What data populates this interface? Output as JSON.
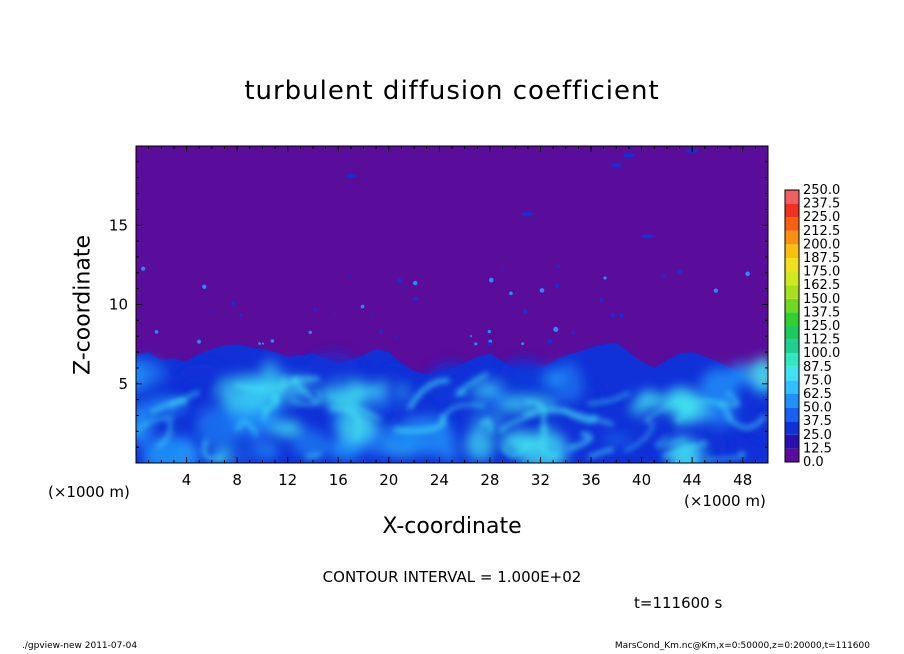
{
  "chart_data": {
    "type": "heatmap",
    "title": "turbulent diffusion coefficient",
    "xlabel": "X-coordinate",
    "ylabel": "Z-coordinate",
    "x_unit_label": "(×1000 m)",
    "y_unit_label": "(×1000 m)",
    "xlim": [
      0,
      50
    ],
    "ylim": [
      0,
      20
    ],
    "x_ticks": [
      4,
      8,
      12,
      16,
      20,
      24,
      28,
      32,
      36,
      40,
      44,
      48
    ],
    "y_ticks": [
      5,
      10,
      15
    ],
    "colorbar": {
      "levels": [
        "0.0",
        "12.5",
        "25.0",
        "37.5",
        "50.0",
        "62.5",
        "75.0",
        "87.5",
        "100.0",
        "112.5",
        "125.0",
        "137.5",
        "150.0",
        "162.5",
        "175.0",
        "187.5",
        "200.0",
        "212.5",
        "225.0",
        "237.5",
        "250.0"
      ],
      "colors": [
        "#5a0c9a",
        "#2a10b0",
        "#1030d8",
        "#1860f0",
        "#2090f8",
        "#30c0ff",
        "#40e0f0",
        "#30e8c0",
        "#20d090",
        "#20c860",
        "#30d030",
        "#70d820",
        "#a8e020",
        "#d0e820",
        "#f0e020",
        "#f8c010",
        "#f89010",
        "#f86010",
        "#f03020",
        "#f06060"
      ]
    },
    "field_description": "Background value ~0 (purple) above ~7 km; turbulent mixed layer 0–7 km with values up to ~75 (cyan); scattered small eddies 8–12 km",
    "contour_interval": "CONTOUR INTERVAL = 1.000E+02",
    "time_label": "t=111600 s"
  },
  "footer": {
    "left": "./gpview-new   2011-07-04",
    "right": "MarsCond_Km.nc@Km,x=0:50000,z=0:20000,t=111600"
  },
  "colors": {
    "background_field": "#5a0c9a",
    "low_turbulence": "#1030d8",
    "mid_turbulence": "#2090f8",
    "high_turbulence": "#40e0f0"
  }
}
